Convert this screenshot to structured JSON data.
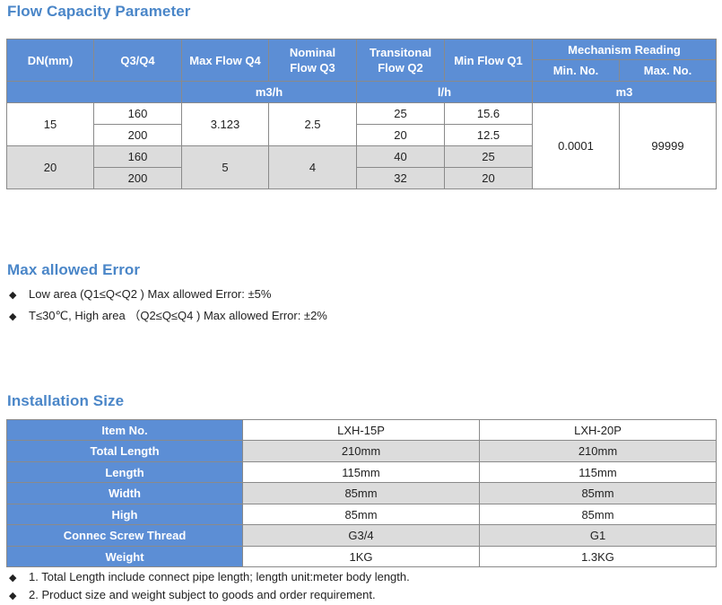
{
  "flow": {
    "title": "Flow Capacity Parameter",
    "headers": {
      "dn": "DN(mm)",
      "q3q4": "Q3/Q4",
      "max_flow": "Max Flow Q4",
      "nominal": "Nominal Flow Q3",
      "transitional": "Transitonal Flow Q2",
      "min_flow": "Min Flow Q1",
      "mechanism": "Mechanism Reading",
      "min_no": "Min. No.",
      "max_no": "Max. No.",
      "unit_m3h": "m3/h",
      "unit_lh": "l/h",
      "unit_m3": "m3"
    },
    "groups": [
      {
        "dn": "15",
        "max_flow": "3.123",
        "nominal": "2.5",
        "rows": [
          {
            "q3q4": "160",
            "q2": "25",
            "q1": "15.6"
          },
          {
            "q3q4": "200",
            "q2": "20",
            "q1": "12.5"
          }
        ]
      },
      {
        "dn": "20",
        "max_flow": "5",
        "nominal": "4",
        "rows": [
          {
            "q3q4": "160",
            "q2": "40",
            "q1": "25"
          },
          {
            "q3q4": "200",
            "q2": "32",
            "q1": "20"
          }
        ]
      }
    ],
    "min_no": "0.0001",
    "max_no": "99999"
  },
  "error": {
    "title": "Max allowed Error",
    "items": [
      "Low area (Q1≤Q<Q2 ) Max allowed Error: ±5%",
      "T≤30℃, High area （Q2≤Q≤Q4 ) Max allowed Error: ±2%"
    ]
  },
  "install": {
    "title": "Installation Size",
    "rows": [
      {
        "label": "Item No.",
        "a": "LXH-15P",
        "b": "LXH-20P"
      },
      {
        "label": "Total Length",
        "a": "210mm",
        "b": "210mm"
      },
      {
        "label": "Length",
        "a": "115mm",
        "b": "115mm"
      },
      {
        "label": "Width",
        "a": "85mm",
        "b": "85mm"
      },
      {
        "label": "High",
        "a": "85mm",
        "b": "85mm"
      },
      {
        "label": "Connec Screw Thread",
        "a": "G3/4",
        "b": "G1"
      },
      {
        "label": "Weight",
        "a": "1KG",
        "b": "1.3KG"
      }
    ],
    "notes": [
      "1. Total Length include connect pipe length; length unit:meter body length.",
      "2. Product size and weight subject to goods and order requirement."
    ]
  },
  "bullet_glyph": "◆"
}
